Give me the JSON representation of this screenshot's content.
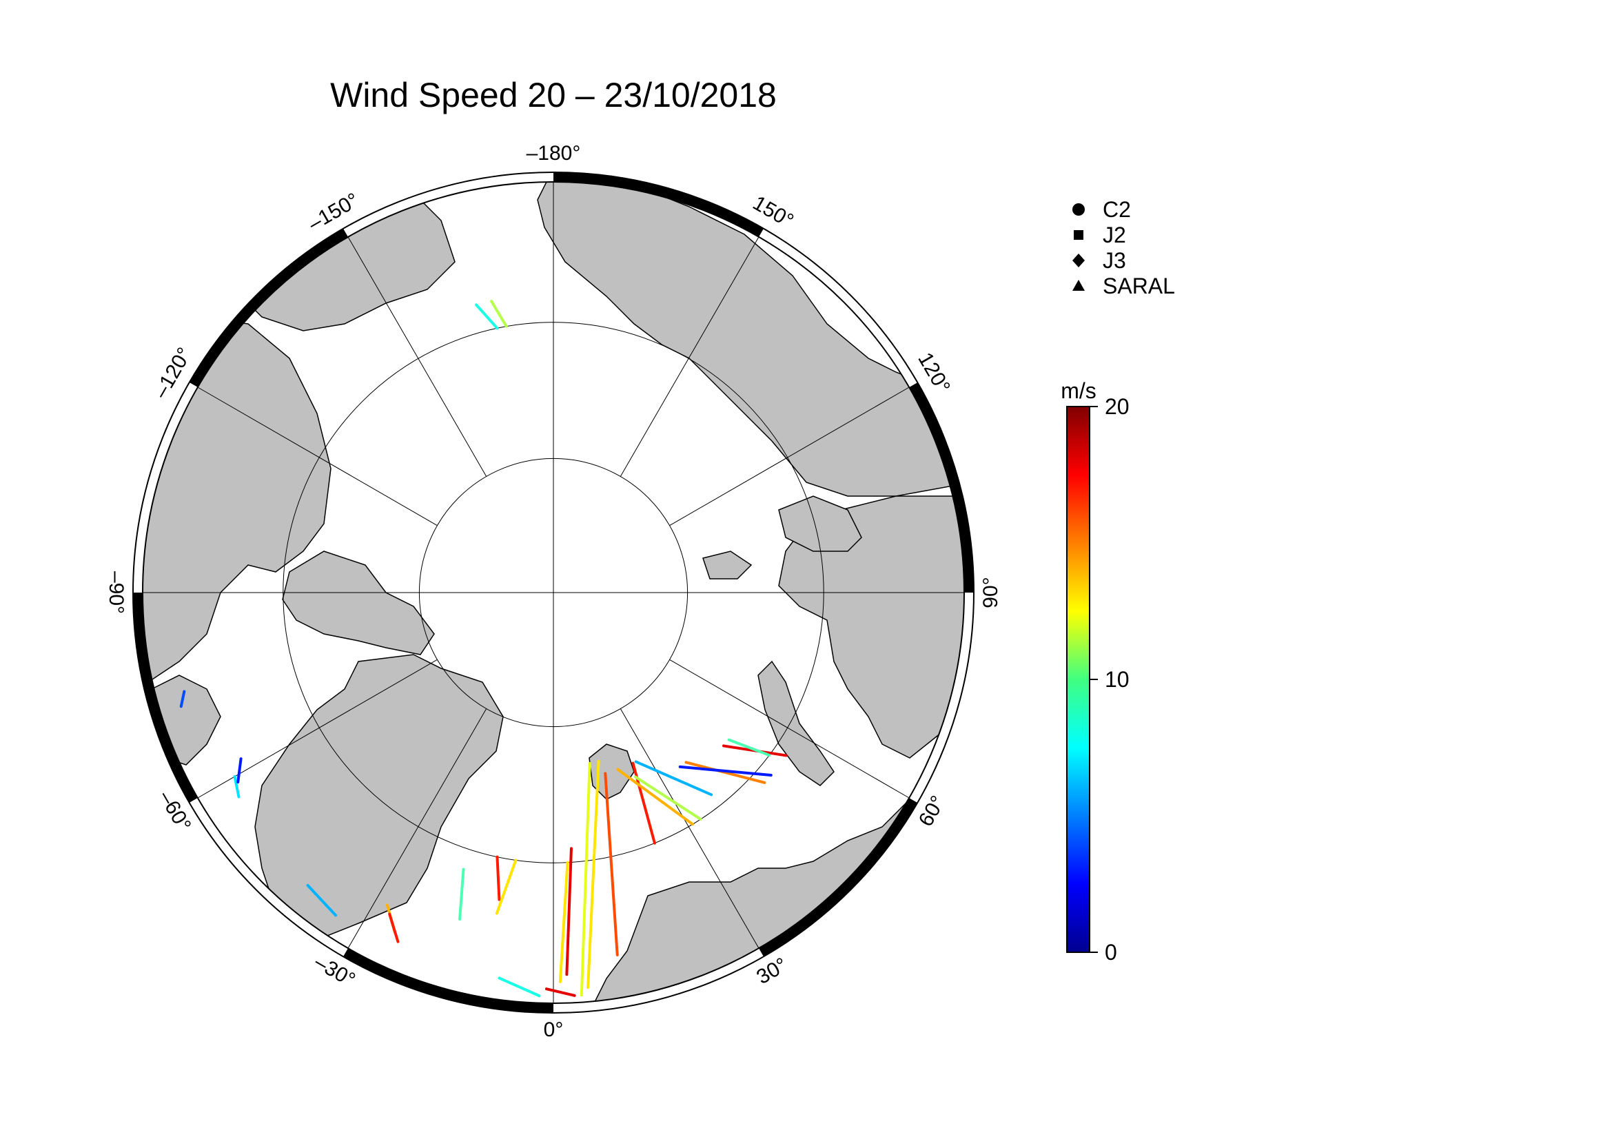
{
  "title": "Wind Speed 20 – 23/10/2018",
  "longitude_labels": [
    {
      "text": "–180°",
      "lon": 180
    },
    {
      "text": "150°",
      "lon": 150
    },
    {
      "text": "120°",
      "lon": 120
    },
    {
      "text": "90°",
      "lon": 90
    },
    {
      "text": "60°",
      "lon": 60
    },
    {
      "text": "30°",
      "lon": 30
    },
    {
      "text": "0°",
      "lon": 0
    },
    {
      "text": "–30°",
      "lon": -30
    },
    {
      "text": "–60°",
      "lon": -60
    },
    {
      "text": "–90°",
      "lon": -90
    },
    {
      "text": "–120°",
      "lon": -120
    },
    {
      "text": "–150°",
      "lon": -150
    }
  ],
  "legend": {
    "items": [
      {
        "label": "C2",
        "marker": "circle"
      },
      {
        "label": "J2",
        "marker": "square"
      },
      {
        "label": "J3",
        "marker": "diamond"
      },
      {
        "label": "SARAL",
        "marker": "triangle"
      }
    ]
  },
  "colorbar": {
    "unit": "m/s",
    "min": 0,
    "max": 20,
    "ticks": [
      {
        "value": 20,
        "label": "20"
      },
      {
        "value": 10,
        "label": "10"
      },
      {
        "value": 0,
        "label": "0"
      }
    ],
    "colormap": "jet"
  },
  "colors": {
    "land": "#c0c0c0",
    "ocean": "#ffffff",
    "frame": "#000000"
  },
  "map": {
    "projection": "north-polar-stereographic",
    "latitude_limit": 60,
    "graticule_latitudes": [
      70,
      80
    ]
  },
  "chart_data": {
    "type": "map-tracks",
    "variable": "wind speed",
    "unit": "m/s",
    "tracks": [
      {
        "from": [
          -170,
          70
        ],
        "to": [
          -168,
          68
        ],
        "value": 11
      },
      {
        "from": [
          -168,
          70
        ],
        "to": [
          -165,
          68
        ],
        "value": 8
      },
      {
        "from": [
          3,
          70
        ],
        "to": [
          1,
          61.5
        ],
        "value": 13
      },
      {
        "from": [
          4,
          71
        ],
        "to": [
          2,
          62
        ],
        "value": 18
      },
      {
        "from": [
          15,
          77
        ],
        "to": [
          5,
          61
        ],
        "value": 13
      },
      {
        "from": [
          16,
          76
        ],
        "to": [
          10,
          63
        ],
        "value": 16
      },
      {
        "from": [
          12,
          77
        ],
        "to": [
          4,
          60.5
        ],
        "value": 12
      },
      {
        "from": [
          25,
          76
        ],
        "to": [
          22,
          70
        ],
        "value": 17
      },
      {
        "from": [
          26,
          76
        ],
        "to": [
          38,
          71
        ],
        "value": 6
      },
      {
        "from": [
          24,
          75
        ],
        "to": [
          33,
          70
        ],
        "value": 11
      },
      {
        "from": [
          38,
          74
        ],
        "to": [
          48,
          69
        ],
        "value": 15
      },
      {
        "from": [
          36,
          74
        ],
        "to": [
          50,
          69
        ],
        "value": 3
      },
      {
        "from": [
          48,
          73
        ],
        "to": [
          55,
          69
        ],
        "value": 18
      },
      {
        "from": [
          50,
          73
        ],
        "to": [
          53,
          70
        ],
        "value": 9
      },
      {
        "from": [
          20,
          76
        ],
        "to": [
          31,
          70
        ],
        "value": 14
      },
      {
        "from": [
          -12,
          70
        ],
        "to": [
          -10,
          67
        ],
        "value": 17
      },
      {
        "from": [
          -8,
          70
        ],
        "to": [
          -10,
          66
        ],
        "value": 13
      },
      {
        "from": [
          -18,
          68.5
        ],
        "to": [
          -16,
          65
        ],
        "value": 9
      },
      {
        "from": [
          -28,
          64
        ],
        "to": [
          -25,
          62.5
        ],
        "value": 14
      },
      {
        "from": [
          -27,
          63.5
        ],
        "to": [
          -24,
          62
        ],
        "value": 17
      },
      {
        "from": [
          -60,
          63
        ],
        "to": [
          -57,
          62.5
        ],
        "value": 7
      },
      {
        "from": [
          -62,
          64
        ],
        "to": [
          -59,
          63
        ],
        "value": 3
      },
      {
        "from": [
          -75,
          62
        ],
        "to": [
          -73,
          61.5
        ],
        "value": 4
      },
      {
        "from": [
          -8,
          61.5
        ],
        "to": [
          -2,
          60.5
        ],
        "value": 8
      },
      {
        "from": [
          -1,
          61
        ],
        "to": [
          3,
          60.5
        ],
        "value": 18
      },
      {
        "from": [
          -40,
          62
        ],
        "to": [
          -34,
          61.5
        ],
        "value": 6
      }
    ]
  }
}
